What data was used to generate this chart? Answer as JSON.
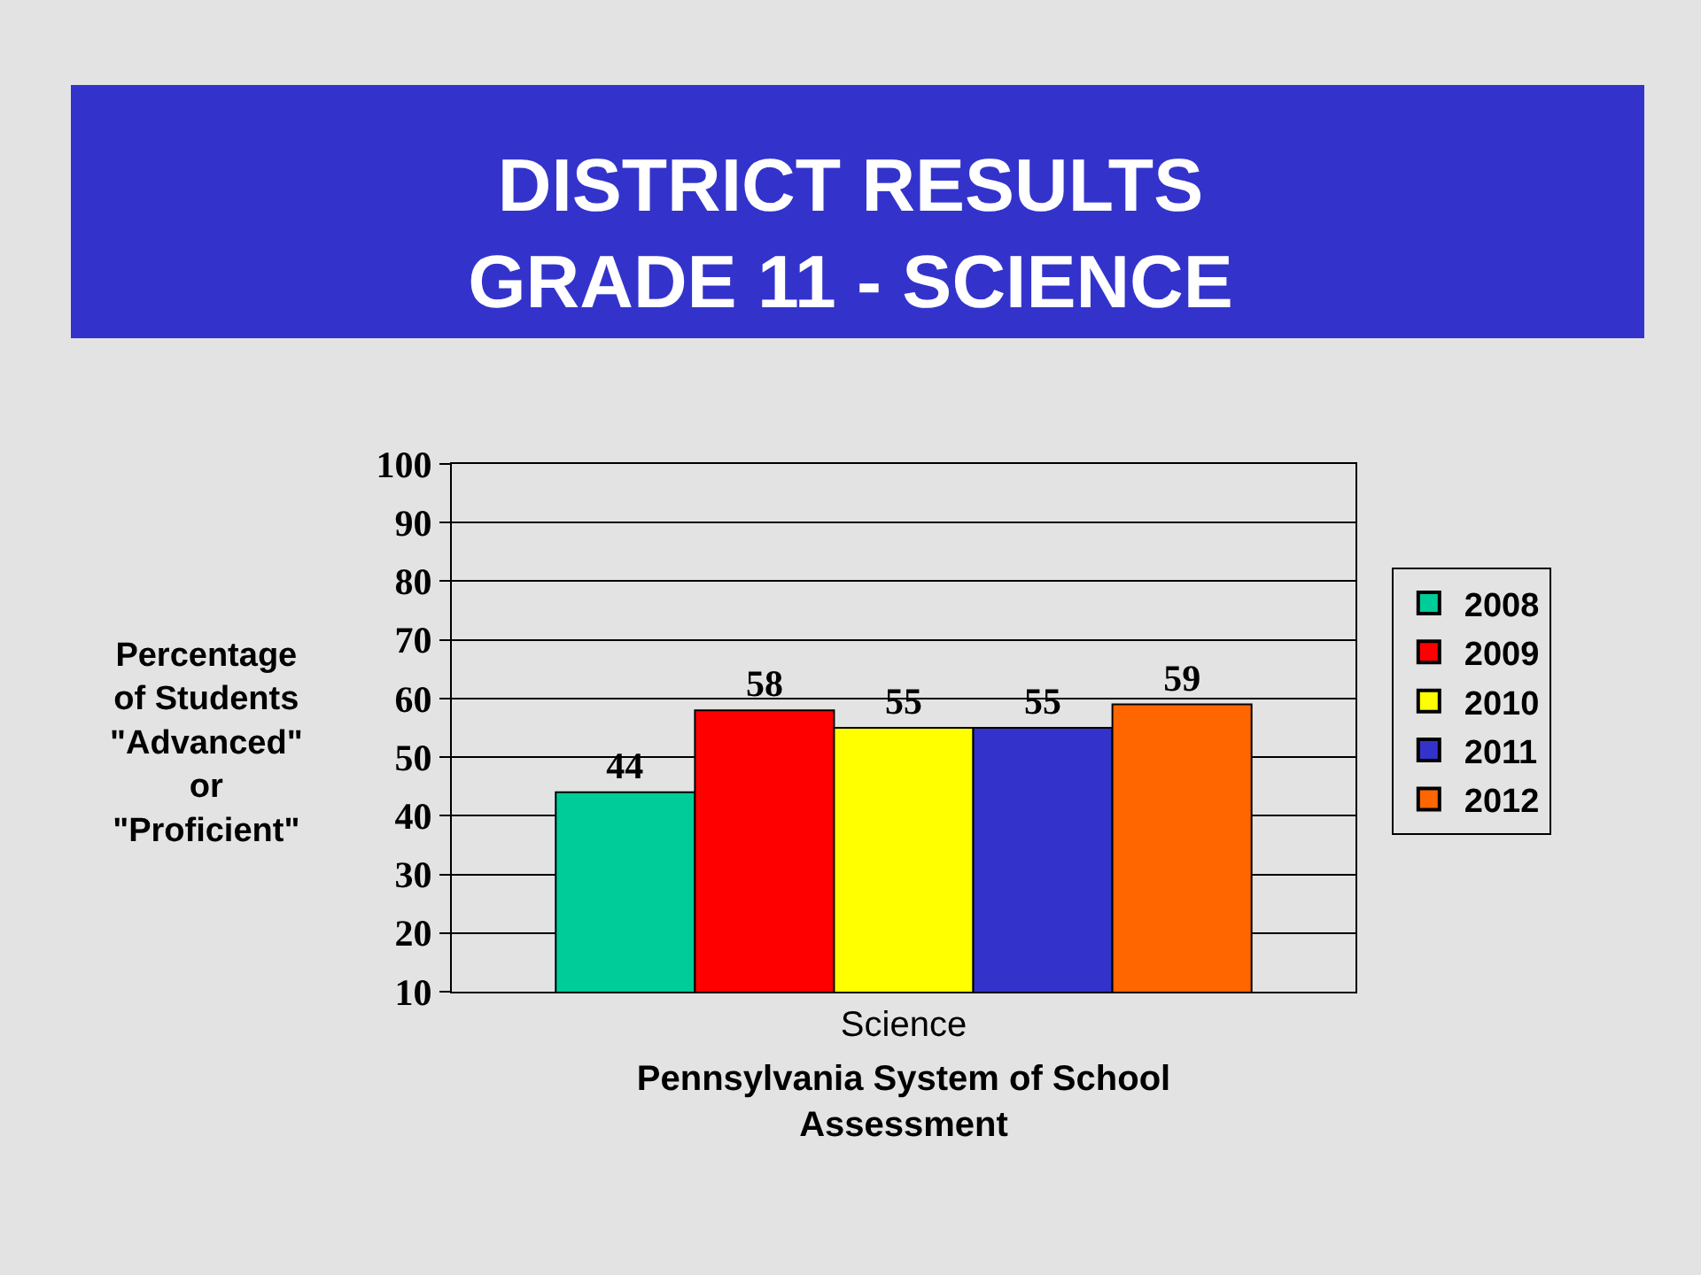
{
  "chart_data": {
    "type": "bar",
    "title": "DISTRICT RESULTS\nGRADE 11 - SCIENCE",
    "xlabel": "Pennsylvania System of School\nAssessment",
    "ylabel": "Percentage\nof Students\n\"Advanced\"\nor\n\"Proficient\"",
    "categories": [
      "Science"
    ],
    "series": [
      {
        "name": "2008",
        "color": "#00cc99",
        "values": [
          44
        ]
      },
      {
        "name": "2009",
        "color": "#ff0000",
        "values": [
          58
        ]
      },
      {
        "name": "2010",
        "color": "#ffff00",
        "values": [
          55
        ]
      },
      {
        "name": "2011",
        "color": "#3333cc",
        "values": [
          55
        ]
      },
      {
        "name": "2012",
        "color": "#ff6600",
        "values": [
          59
        ]
      }
    ],
    "ylim": [
      10,
      100
    ],
    "yticks": [
      10,
      20,
      30,
      40,
      50,
      60,
      70,
      80,
      90,
      100
    ],
    "grid": "y",
    "legend": "right",
    "data_labels": true
  }
}
